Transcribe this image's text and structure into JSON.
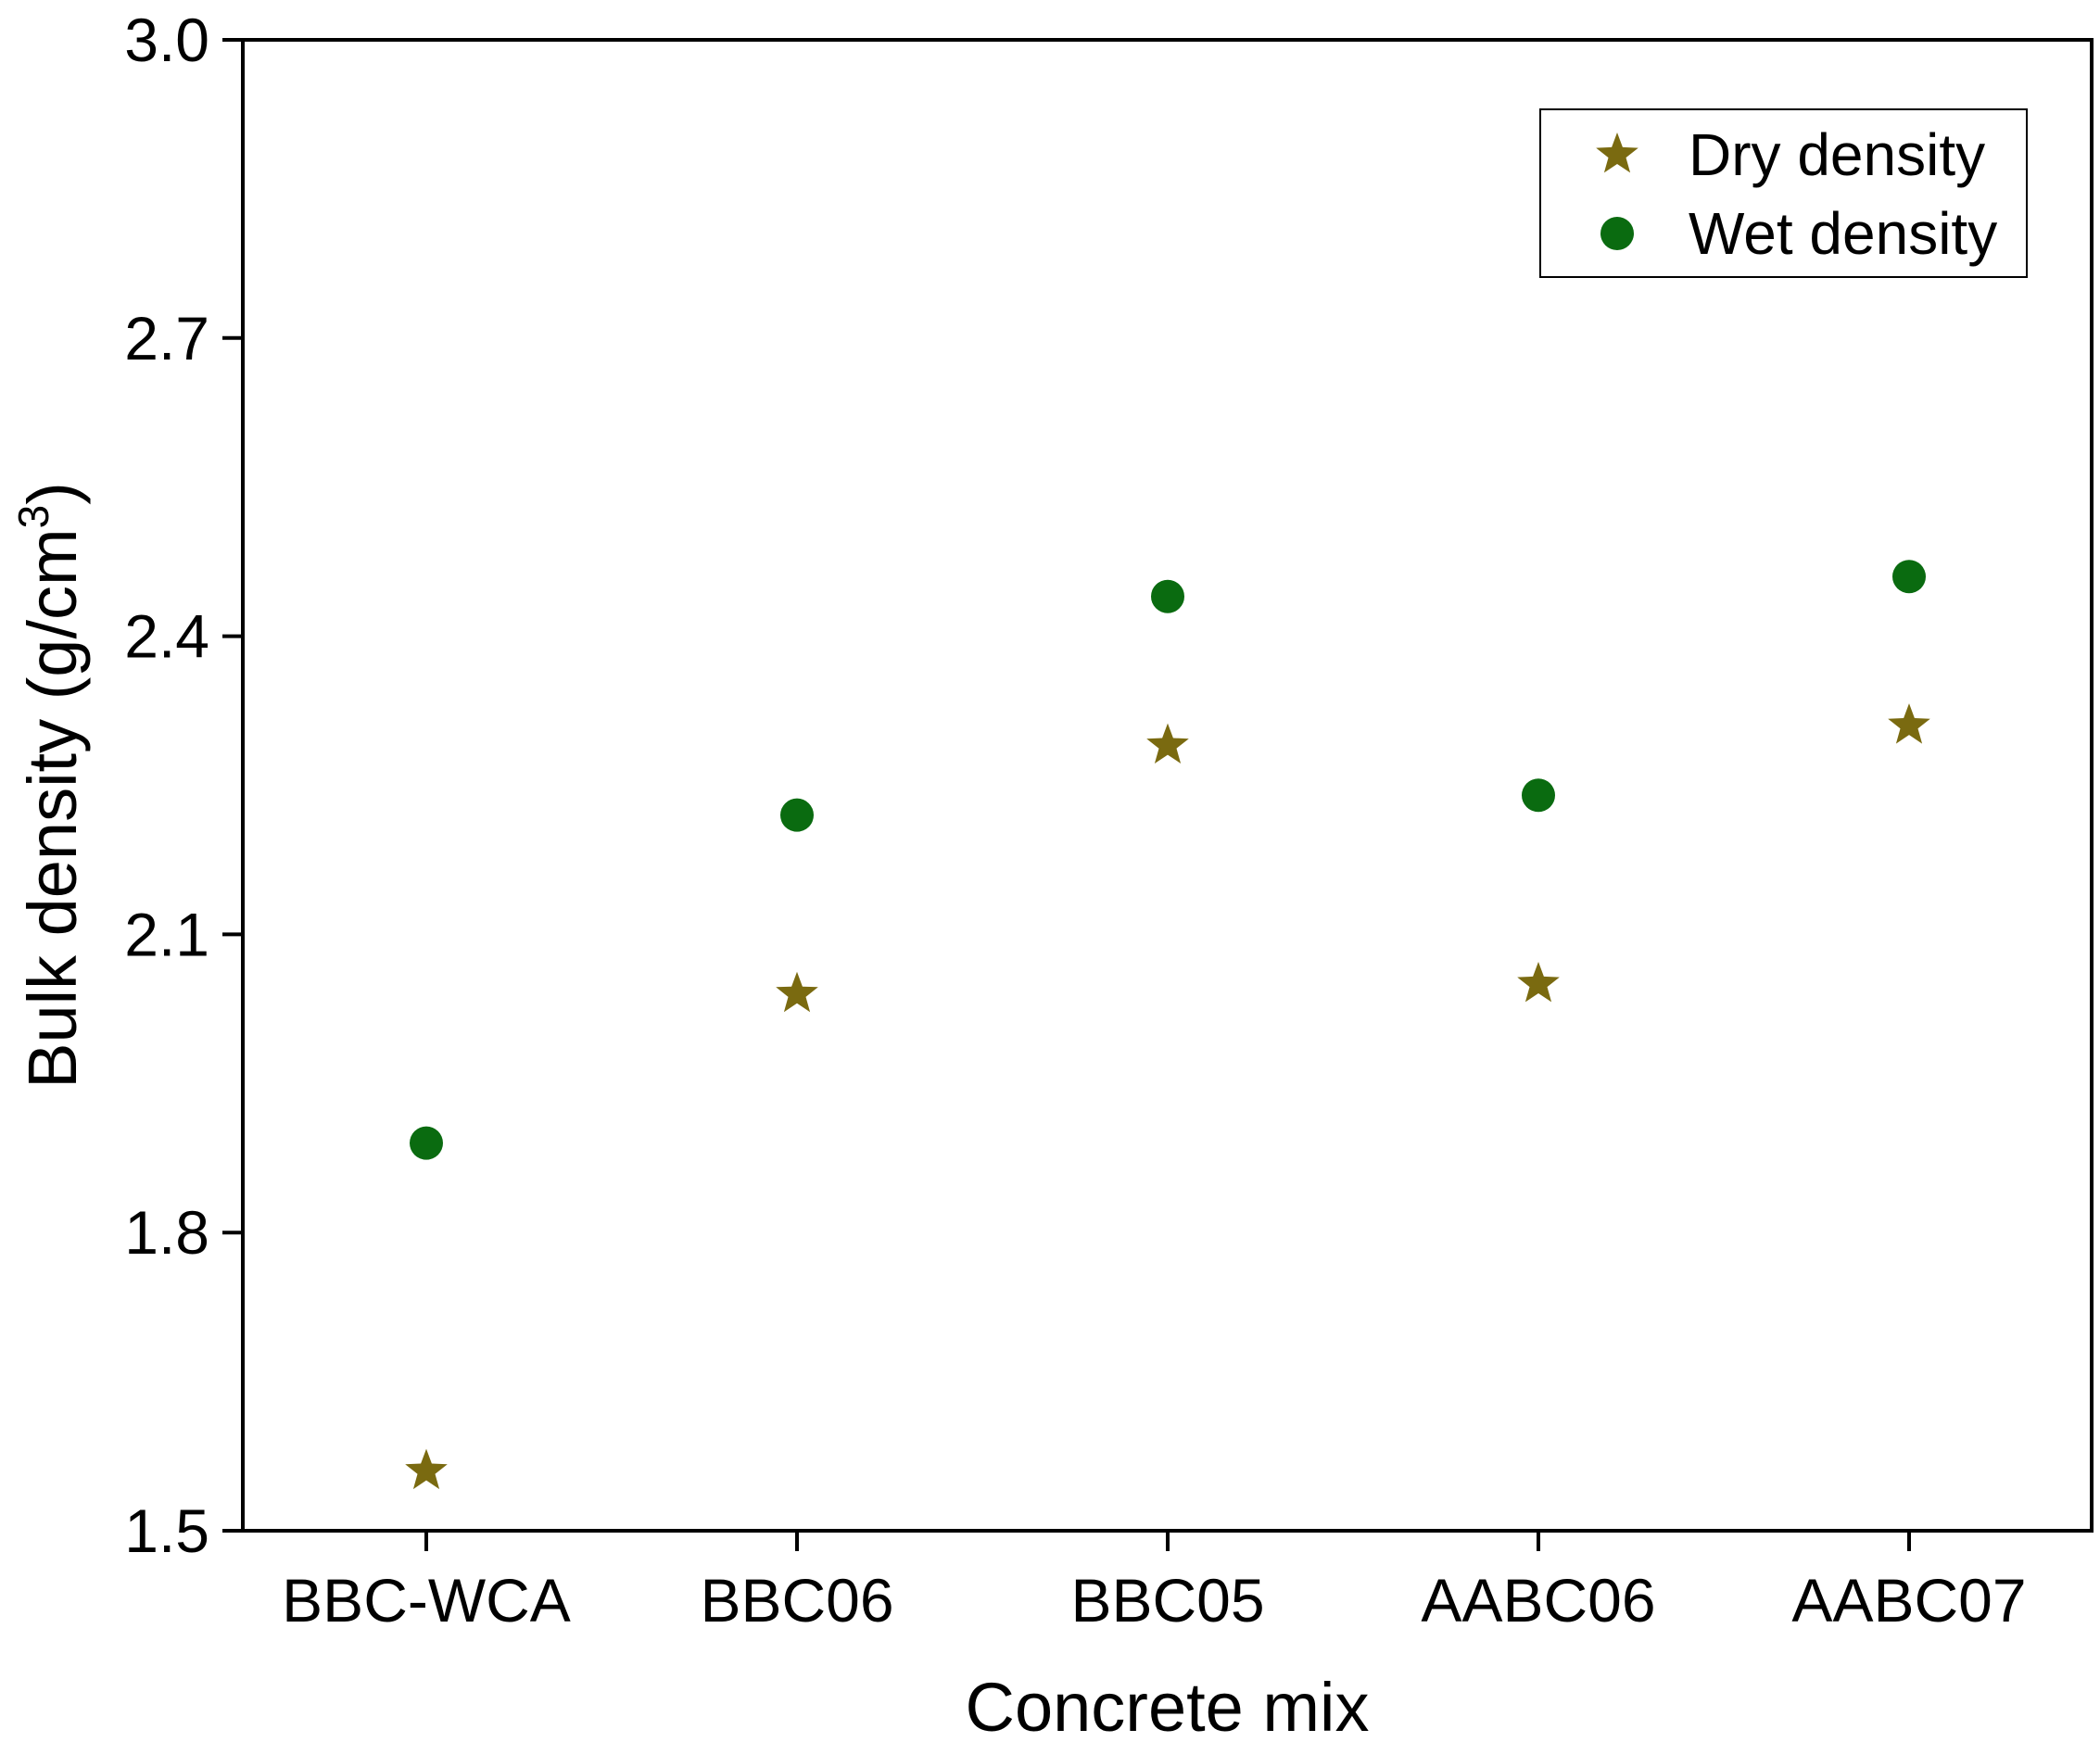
{
  "chart_data": {
    "type": "scatter",
    "title": "",
    "xlabel": "Concrete mix",
    "ylabel": "Bulk density (g/cm",
    "ylabel_superscript": "3",
    "ylabel_close": ")",
    "categories": [
      "BBC-WCA",
      "BBC06",
      "BBC05",
      "AABC06",
      "AABC07"
    ],
    "ylim": [
      1.5,
      3.0
    ],
    "yticks": [
      "1.5",
      "1.8",
      "2.1",
      "2.4",
      "2.7",
      "3.0"
    ],
    "grid": false,
    "legend_position": "top-right",
    "series": [
      {
        "name": "Dry density",
        "marker": "star",
        "color": "#7a6a10",
        "values": [
          1.56,
          2.04,
          2.29,
          2.05,
          2.31
        ]
      },
      {
        "name": "Wet density",
        "marker": "circle",
        "color": "#0a6b10",
        "values": [
          1.89,
          2.22,
          2.44,
          2.24,
          2.46
        ]
      }
    ]
  }
}
